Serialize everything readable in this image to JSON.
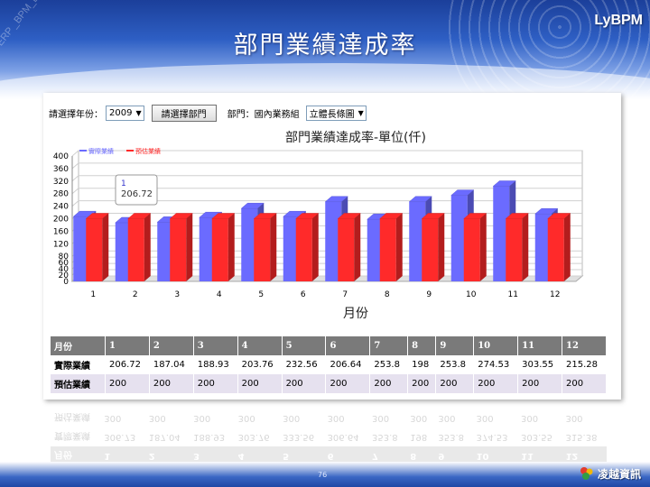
{
  "slide": {
    "title": "部門業績達成率",
    "brand": "LyBPM",
    "watermark_lines": [
      "ERP _BPM_BI_Flow_",
      "ERP"
    ],
    "page_number": "76",
    "footer_logo_text": "凌越資訊"
  },
  "filters": {
    "year_label": "請選擇年份：",
    "year_value": "2009",
    "dept_button": "請選擇部門",
    "dept_label": "部門：國內業務組",
    "manager_value": "立體長條圖"
  },
  "chart_data": {
    "type": "bar",
    "title": "部門業績達成率-單位(仟)",
    "xlabel": "月份",
    "ylabel": "",
    "categories": [
      "1",
      "2",
      "3",
      "4",
      "5",
      "6",
      "7",
      "8",
      "9",
      "10",
      "11",
      "12"
    ],
    "series": [
      {
        "name": "實際業績",
        "color": "#6b6bff",
        "values": [
          206.72,
          187.04,
          188.93,
          203.76,
          232.56,
          206.64,
          253.8,
          198,
          253.8,
          274.53,
          303.55,
          215.28
        ]
      },
      {
        "name": "預估業績",
        "color": "#ff2a2a",
        "values": [
          200,
          200,
          200,
          200,
          200,
          200,
          200,
          200,
          200,
          200,
          200,
          200
        ]
      }
    ],
    "ylim": [
      0,
      400
    ],
    "yticks": [
      0,
      20,
      40,
      60,
      80,
      120,
      160,
      200,
      240,
      280,
      320,
      360,
      400
    ],
    "grid": true,
    "legend_position": "top-left",
    "tooltip": {
      "title": "1",
      "value": "206.72"
    }
  },
  "table": {
    "header_label": "月份",
    "months": [
      "1",
      "2",
      "3",
      "4",
      "5",
      "6",
      "7",
      "8",
      "9",
      "10",
      "11",
      "12"
    ],
    "rows": [
      {
        "label": "實際業績",
        "values": [
          "206.72",
          "187.04",
          "188.93",
          "203.76",
          "232.56",
          "206.64",
          "253.8",
          "198",
          "253.8",
          "274.53",
          "303.55",
          "215.28"
        ]
      },
      {
        "label": "預估業績",
        "values": [
          "200",
          "200",
          "200",
          "200",
          "200",
          "200",
          "200",
          "200",
          "200",
          "200",
          "200",
          "200"
        ]
      }
    ]
  },
  "reflection": {
    "row_est": [
      "預估業績",
      "300",
      "300",
      "300",
      "300",
      "300",
      "300",
      "300",
      "300",
      "300",
      "300",
      "300",
      "300"
    ],
    "row_actual": [
      "實際業績",
      "306.73",
      "187.04",
      "188.93",
      "303.76",
      "333.56",
      "306.64",
      "353.8",
      "198",
      "353.8",
      "374.53",
      "303.55",
      "315.38"
    ],
    "row_head": [
      "月份",
      "1",
      "2",
      "3",
      "4",
      "5",
      "6",
      "7",
      "8",
      "9",
      "10",
      "11",
      "12"
    ]
  }
}
